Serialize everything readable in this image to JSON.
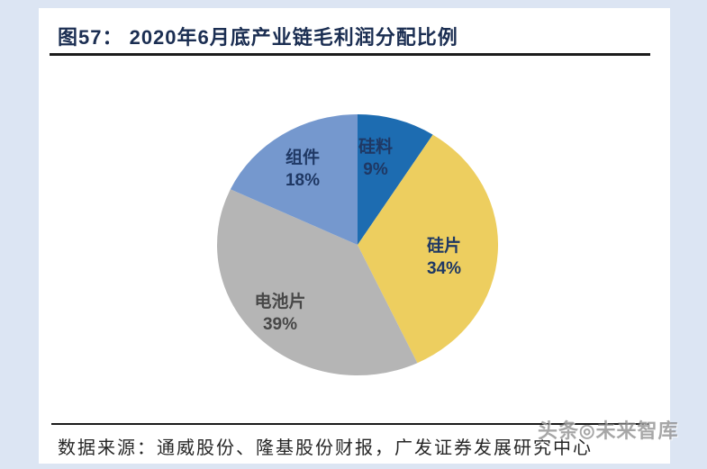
{
  "page": {
    "background_color": "#dce5f3",
    "card_color": "#ffffff"
  },
  "header": {
    "title": "图57： 2020年6月底产业链毛利润分配比例",
    "title_color": "#1b2e52"
  },
  "chart_data": {
    "type": "pie",
    "title": "2020年6月底产业链毛利润分配比例",
    "start_angle_deg": 0,
    "direction": "clockwise",
    "legend_position": "none",
    "labels_inside": true,
    "slices": [
      {
        "label": "硅料",
        "value": 9,
        "display": "9%",
        "color": "#1d6cb1",
        "label_color": "#1f3864"
      },
      {
        "label": "硅片",
        "value": 34,
        "display": "34%",
        "color": "#edce5f",
        "label_color": "#1f3864"
      },
      {
        "label": "电池片",
        "value": 39,
        "display": "39%",
        "color": "#b5b5b5",
        "label_color": "#484848"
      },
      {
        "label": "组件",
        "value": 18,
        "display": "18%",
        "color": "#7598ce",
        "label_color": "#1f3864"
      }
    ]
  },
  "footer": {
    "source": "数据来源：通威股份、隆基股份财报，广发证券发展研究中心",
    "watermark": {
      "prefix": "头条",
      "logo": "◎",
      "suffix": "未来智库"
    }
  }
}
